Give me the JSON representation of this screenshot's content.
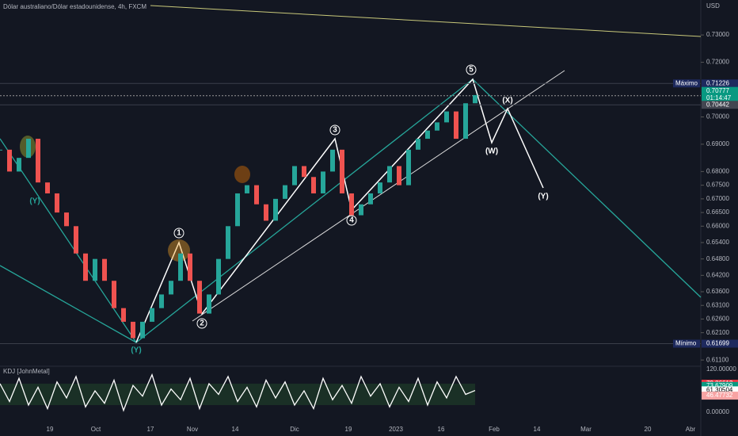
{
  "header": {
    "title": "Dólar australiano/Dólar estadounidense, 4h, FXCM",
    "currency": "USD"
  },
  "price_axis": {
    "ylim": [
      0.6093,
      0.7428
    ],
    "ticks": [
      {
        "value": 0.73,
        "label": "0.73000"
      },
      {
        "value": 0.72,
        "label": "0.72000"
      },
      {
        "value": 0.7,
        "label": "0.70000"
      },
      {
        "value": 0.69,
        "label": "0.69000"
      },
      {
        "value": 0.68,
        "label": "0.68000"
      },
      {
        "value": 0.675,
        "label": "0.67500"
      },
      {
        "value": 0.67,
        "label": "0.67000"
      },
      {
        "value": 0.665,
        "label": "0.66500"
      },
      {
        "value": 0.66,
        "label": "0.66000"
      },
      {
        "value": 0.654,
        "label": "0.65400"
      },
      {
        "value": 0.648,
        "label": "0.64800"
      },
      {
        "value": 0.642,
        "label": "0.64200"
      },
      {
        "value": 0.636,
        "label": "0.63600"
      },
      {
        "value": 0.631,
        "label": "0.63100"
      },
      {
        "value": 0.626,
        "label": "0.62600"
      },
      {
        "value": 0.621,
        "label": "0.62100"
      },
      {
        "value": 0.611,
        "label": "0.61100"
      }
    ]
  },
  "price_tags": [
    {
      "name": "Máximo",
      "value": 0.71226,
      "label": "0.71226"
    },
    {
      "value": 0.70777,
      "label": "0.70777",
      "countdown": "01:14:47"
    },
    {
      "value": 0.70442,
      "label": "0.70442"
    },
    {
      "name": "Mínimo",
      "value": 0.61699,
      "label": "0.61699"
    }
  ],
  "time_axis": [
    "19",
    "Oct",
    "17",
    "Nov",
    "14",
    "Dic",
    "19",
    "2023",
    "16",
    "Feb",
    "14",
    "Mar",
    "20",
    "Abr"
  ],
  "wave_labels": [
    "1",
    "2",
    "3",
    "4",
    "5",
    "(W)",
    "(X)",
    "(Y)",
    "(Y)",
    "(Y)"
  ],
  "price": [
    0.688,
    0.68,
    0.685,
    0.692,
    0.676,
    0.672,
    0.665,
    0.66,
    0.65,
    0.64,
    0.648,
    0.64,
    0.63,
    0.625,
    0.619,
    0.625,
    0.63,
    0.635,
    0.64,
    0.65,
    0.64,
    0.628,
    0.635,
    0.648,
    0.66,
    0.672,
    0.675,
    0.668,
    0.662,
    0.67,
    0.675,
    0.682,
    0.678,
    0.672,
    0.68,
    0.688,
    0.672,
    0.664,
    0.668,
    0.672,
    0.676,
    0.682,
    0.675,
    0.688,
    0.692,
    0.695,
    0.698,
    0.702,
    0.692,
    0.705,
    0.708
  ],
  "kdj": {
    "title": "KDJ [JohnMetal]",
    "ylim": [
      0,
      120
    ],
    "ticks": [
      {
        "value": 120,
        "label": "120.00000"
      },
      {
        "value": 0,
        "label": "0.00000"
      }
    ],
    "tags": [
      {
        "value": 79.86612,
        "label": "79.86612"
      },
      {
        "value": 73.67909,
        "label": "73.67909"
      },
      {
        "value": 61.30504,
        "label": "61.30504"
      },
      {
        "value": 46.47732,
        "label": "46.47732"
      }
    ],
    "values": [
      80,
      30,
      95,
      20,
      70,
      10,
      85,
      40,
      100,
      15,
      60,
      25,
      90,
      5,
      75,
      45,
      105,
      20,
      65,
      35,
      95,
      10,
      80,
      50,
      100,
      30,
      70,
      15,
      90,
      40,
      85,
      20,
      60,
      10,
      95,
      35,
      75,
      25,
      100,
      45,
      80,
      15,
      70,
      30,
      95,
      20,
      85,
      40,
      100,
      50,
      61
    ]
  }
}
